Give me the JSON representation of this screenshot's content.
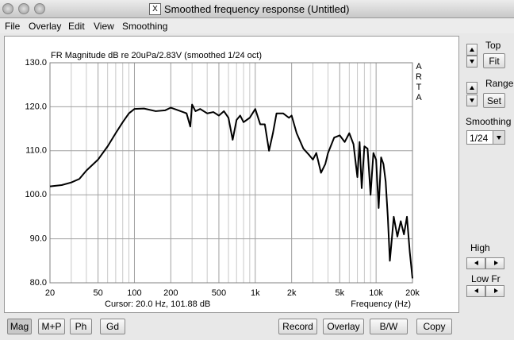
{
  "window": {
    "title": "Smoothed frequency response (Untitled)"
  },
  "menu": [
    "File",
    "Overlay",
    "Edit",
    "View",
    "Smoothing"
  ],
  "chart_data": {
    "type": "line",
    "title": "FR Magnitude dB re 20uPa/2.83V (smoothed 1/24 oct)",
    "watermark": "ARTA",
    "xlabel": "Frequency (Hz)",
    "annotation": "Cursor: 20.0 Hz, 101.88 dB",
    "xscale": "log",
    "grid": true,
    "color": "#000000",
    "xlim": [
      20,
      20000
    ],
    "ylim": [
      80,
      130
    ],
    "xticks": [
      20,
      50,
      100,
      200,
      500,
      {
        "value": 1000,
        "label": "1k"
      },
      {
        "value": 2000,
        "label": "2k"
      },
      {
        "value": 5000,
        "label": "5k"
      },
      {
        "value": 10000,
        "label": "10k"
      },
      {
        "value": 20000,
        "label": "20k"
      }
    ],
    "x_minor_grid": [
      30,
      40,
      60,
      70,
      80,
      90,
      300,
      400,
      600,
      700,
      800,
      900,
      3000,
      4000,
      6000,
      7000,
      8000,
      9000
    ],
    "yticks": [
      {
        "value": 80,
        "label": "80.0"
      },
      {
        "value": 90,
        "label": "90.0"
      },
      {
        "value": 100,
        "label": "100.0"
      },
      {
        "value": 110,
        "label": "110.0"
      },
      {
        "value": 120,
        "label": "120.0"
      },
      {
        "value": 130,
        "label": "130.0"
      }
    ],
    "x": [
      20,
      25,
      30,
      35,
      40,
      50,
      60,
      70,
      80,
      90,
      100,
      120,
      150,
      180,
      200,
      230,
      270,
      290,
      300,
      320,
      350,
      400,
      450,
      500,
      550,
      600,
      650,
      700,
      750,
      800,
      900,
      1000,
      1100,
      1200,
      1300,
      1400,
      1500,
      1700,
      1900,
      2000,
      2200,
      2500,
      2800,
      3000,
      3200,
      3500,
      3800,
      4000,
      4500,
      5000,
      5500,
      6000,
      6500,
      7000,
      7300,
      7600,
      8000,
      8500,
      9000,
      9500,
      10000,
      10500,
      11000,
      11500,
      12000,
      12500,
      13000,
      13500,
      14000,
      15000,
      16000,
      17000,
      18000,
      19000,
      20000
    ],
    "values": [
      101.9,
      102.2,
      102.8,
      103.6,
      105.5,
      108,
      111,
      114,
      116.5,
      118.5,
      119.5,
      119.6,
      119,
      119.2,
      119.8,
      119.2,
      118.5,
      115.5,
      120.5,
      119,
      119.5,
      118.5,
      118.8,
      118,
      119,
      117.5,
      112.5,
      117,
      118,
      116.5,
      117.5,
      119.5,
      116,
      116,
      110,
      114,
      118.5,
      118.5,
      117.5,
      118,
      114,
      110.5,
      109,
      108,
      109.5,
      105,
      107,
      109.5,
      113,
      113.5,
      112,
      114,
      111.5,
      104,
      112,
      101.5,
      111,
      110.5,
      100,
      109.5,
      108,
      97,
      108.5,
      107,
      103,
      95,
      85,
      90,
      95,
      90.5,
      94,
      91,
      95,
      87,
      81
    ]
  },
  "side_panel": {
    "top": "Top",
    "fit": "Fit",
    "range": "Range",
    "set": "Set",
    "smoothing": "Smoothing",
    "smoothing_value": "1/24",
    "high": "High",
    "low": "Low Fr"
  },
  "buttons": [
    "Mag",
    "M+P",
    "Ph",
    "Gd",
    "Record",
    "Overlay",
    "B/W",
    "Copy"
  ]
}
